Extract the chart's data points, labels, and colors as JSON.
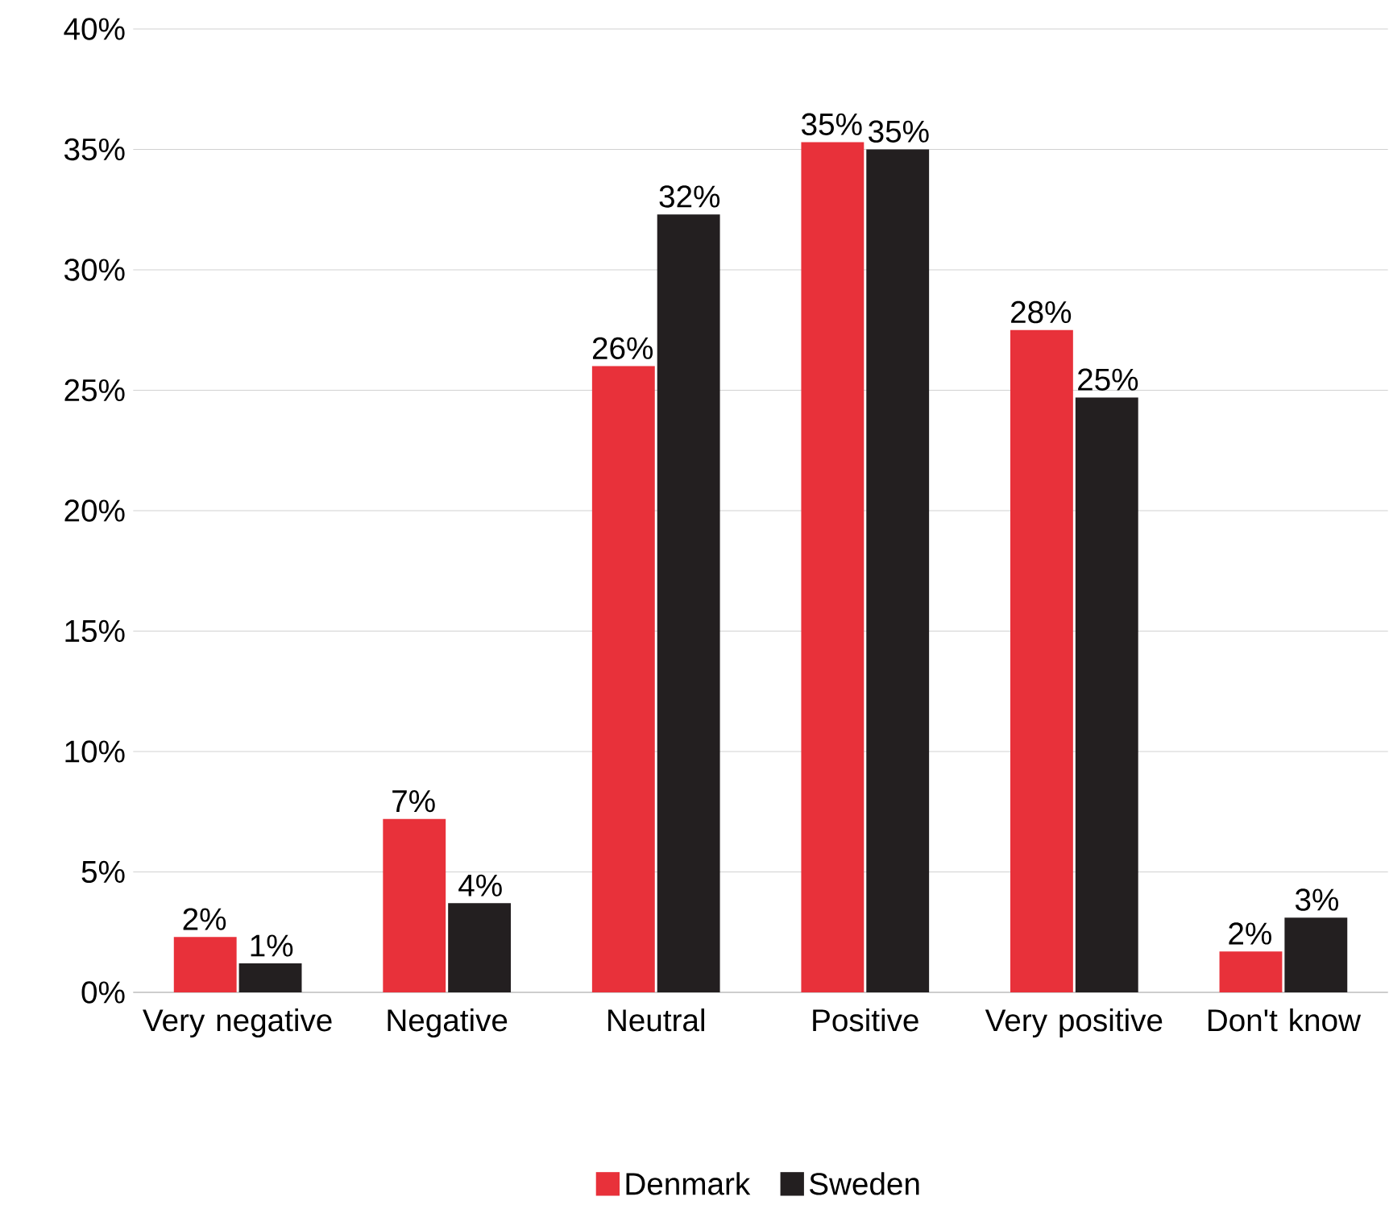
{
  "chart_data": {
    "type": "bar",
    "categories": [
      "Very negative",
      "Negative",
      "Neutral",
      "Positive",
      "Very positive",
      "Don't know"
    ],
    "series": [
      {
        "name": "Denmark",
        "color": "#e8313a",
        "values": [
          2.3,
          7.2,
          26.0,
          35.3,
          27.5,
          1.7
        ],
        "value_labels": [
          "2%",
          "7%",
          "26%",
          "35%",
          "28%",
          "2%"
        ]
      },
      {
        "name": "Sweden",
        "color": "#231f20",
        "values": [
          1.2,
          3.7,
          32.3,
          35.0,
          24.7,
          3.1
        ],
        "value_labels": [
          "1%",
          "4%",
          "32%",
          "35%",
          "25%",
          "3%"
        ]
      }
    ],
    "ylim": [
      0,
      40
    ],
    "yticks": [
      {
        "value": 0,
        "label": "0%"
      },
      {
        "value": 5,
        "label": "5%"
      },
      {
        "value": 10,
        "label": "10%"
      },
      {
        "value": 15,
        "label": "15%"
      },
      {
        "value": 20,
        "label": "20%"
      },
      {
        "value": 25,
        "label": "25%"
      },
      {
        "value": 30,
        "label": "30%"
      },
      {
        "value": 35,
        "label": "35%"
      },
      {
        "value": 40,
        "label": "40%"
      }
    ],
    "grid": "y",
    "legend": "bottom"
  }
}
